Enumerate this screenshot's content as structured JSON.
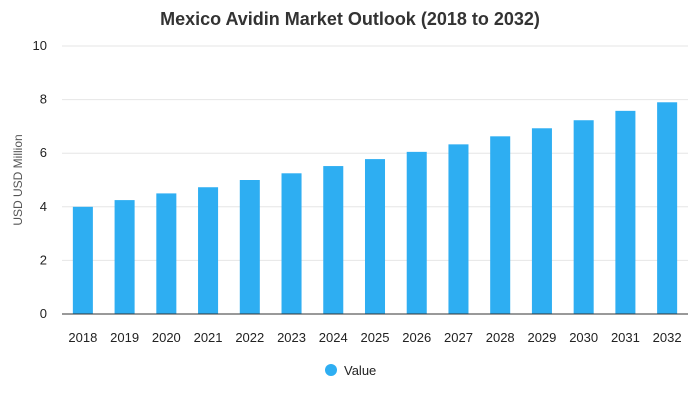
{
  "chart_data": {
    "type": "bar",
    "title": "Mexico Avidin Market Outlook (2018 to 2032)",
    "xlabel": "",
    "ylabel": "USD USD Million",
    "categories": [
      "2018",
      "2019",
      "2020",
      "2021",
      "2022",
      "2023",
      "2024",
      "2025",
      "2026",
      "2027",
      "2028",
      "2029",
      "2030",
      "2031",
      "2032"
    ],
    "series": [
      {
        "name": "Value",
        "color": "#2eaef2",
        "values": [
          4.0,
          4.25,
          4.5,
          4.73,
          5.0,
          5.25,
          5.52,
          5.78,
          6.05,
          6.33,
          6.63,
          6.93,
          7.23,
          7.58,
          7.9
        ]
      }
    ],
    "ylim": [
      0,
      10
    ],
    "yticks": [
      0,
      2,
      4,
      6,
      8,
      10
    ],
    "grid": true,
    "legend_position": "bottom"
  }
}
